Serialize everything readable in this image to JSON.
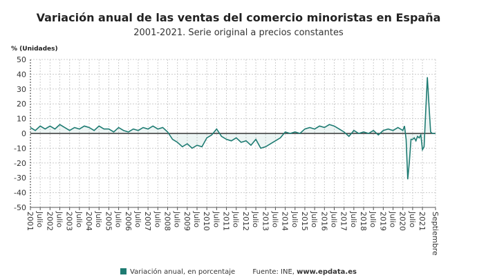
{
  "chart_data": {
    "type": "area",
    "title": "Variación anual de las ventas del comercio minoristas en España",
    "subtitle": "2001-2021. Serie original a precios constantes",
    "ylabel": "% (Unidades)",
    "xlabel": "",
    "ylim": [
      -50,
      50
    ],
    "yticks": [
      50,
      40,
      30,
      20,
      10,
      0,
      -10,
      -20,
      -30,
      -40,
      -50
    ],
    "xlim": [
      "2001-01",
      "2021-09"
    ],
    "xtick_labels": [
      "2001",
      "Julio",
      "2002",
      "Julio",
      "2003",
      "Julio",
      "2004",
      "Julio",
      "2005",
      "Julio",
      "2006",
      "Julio",
      "2007",
      "Julio",
      "2008",
      "Julio",
      "2009",
      "Julio",
      "2010",
      "Julio",
      "2011",
      "Julio",
      "2012",
      "Julio",
      "2013",
      "Julio",
      "2014",
      "Julio",
      "2015",
      "Julio",
      "2016",
      "Julio",
      "2017",
      "Julio",
      "2018",
      "Julio",
      "2019",
      "Julio",
      "2020",
      "Julio",
      "2021",
      "Septiembre"
    ],
    "grid": true,
    "legend_position": "bottom",
    "color": "#1e7b72",
    "series": [
      {
        "name": "Variación anual, en porcentaje",
        "x": [
          "2001-01",
          "2001-04",
          "2001-07",
          "2001-10",
          "2002-01",
          "2002-04",
          "2002-07",
          "2002-10",
          "2003-01",
          "2003-04",
          "2003-07",
          "2003-10",
          "2004-01",
          "2004-04",
          "2004-07",
          "2004-10",
          "2005-01",
          "2005-04",
          "2005-07",
          "2005-10",
          "2006-01",
          "2006-04",
          "2006-07",
          "2006-10",
          "2007-01",
          "2007-04",
          "2007-07",
          "2007-10",
          "2008-01",
          "2008-04",
          "2008-07",
          "2008-10",
          "2009-01",
          "2009-04",
          "2009-07",
          "2009-10",
          "2010-01",
          "2010-04",
          "2010-07",
          "2010-10",
          "2011-01",
          "2011-04",
          "2011-07",
          "2011-10",
          "2012-01",
          "2012-04",
          "2012-07",
          "2012-10",
          "2013-01",
          "2013-04",
          "2013-07",
          "2013-10",
          "2014-01",
          "2014-04",
          "2014-07",
          "2014-10",
          "2015-01",
          "2015-04",
          "2015-07",
          "2015-10",
          "2016-01",
          "2016-04",
          "2016-07",
          "2016-10",
          "2017-01",
          "2017-04",
          "2017-07",
          "2017-10",
          "2018-01",
          "2018-04",
          "2018-07",
          "2018-10",
          "2019-01",
          "2019-04",
          "2019-07",
          "2019-10",
          "2020-01",
          "2020-02",
          "2020-03",
          "2020-04",
          "2020-05",
          "2020-06",
          "2020-07",
          "2020-08",
          "2020-09",
          "2020-10",
          "2020-11",
          "2020-12",
          "2021-01",
          "2021-02",
          "2021-03",
          "2021-04",
          "2021-05",
          "2021-06",
          "2021-07",
          "2021-08",
          "2021-09"
        ],
        "y": [
          4,
          2,
          5,
          3,
          5,
          3,
          6,
          4,
          2,
          4,
          3,
          5,
          4,
          2,
          5,
          3,
          3,
          1,
          4,
          2,
          1,
          3,
          2,
          4,
          3,
          5,
          3,
          4,
          1,
          -4,
          -6,
          -9,
          -7,
          -10,
          -8,
          -9,
          -3,
          -1,
          3,
          -2,
          -4,
          -5,
          -3,
          -6,
          -5,
          -8,
          -4,
          -10,
          -9,
          -7,
          -5,
          -3,
          1,
          0,
          1,
          0,
          3,
          4,
          3,
          5,
          4,
          6,
          5,
          3,
          1,
          -2,
          2,
          0,
          1,
          0,
          2,
          -1,
          2,
          3,
          2,
          4,
          2,
          5,
          -4,
          -31,
          -19,
          -4,
          -4,
          -3,
          -5,
          -2,
          -3,
          -1,
          -11,
          -9,
          15,
          38,
          19,
          1,
          0,
          0,
          0
        ]
      }
    ],
    "source": "Fuente: INE, ",
    "source_url": "www.epdata.es"
  }
}
